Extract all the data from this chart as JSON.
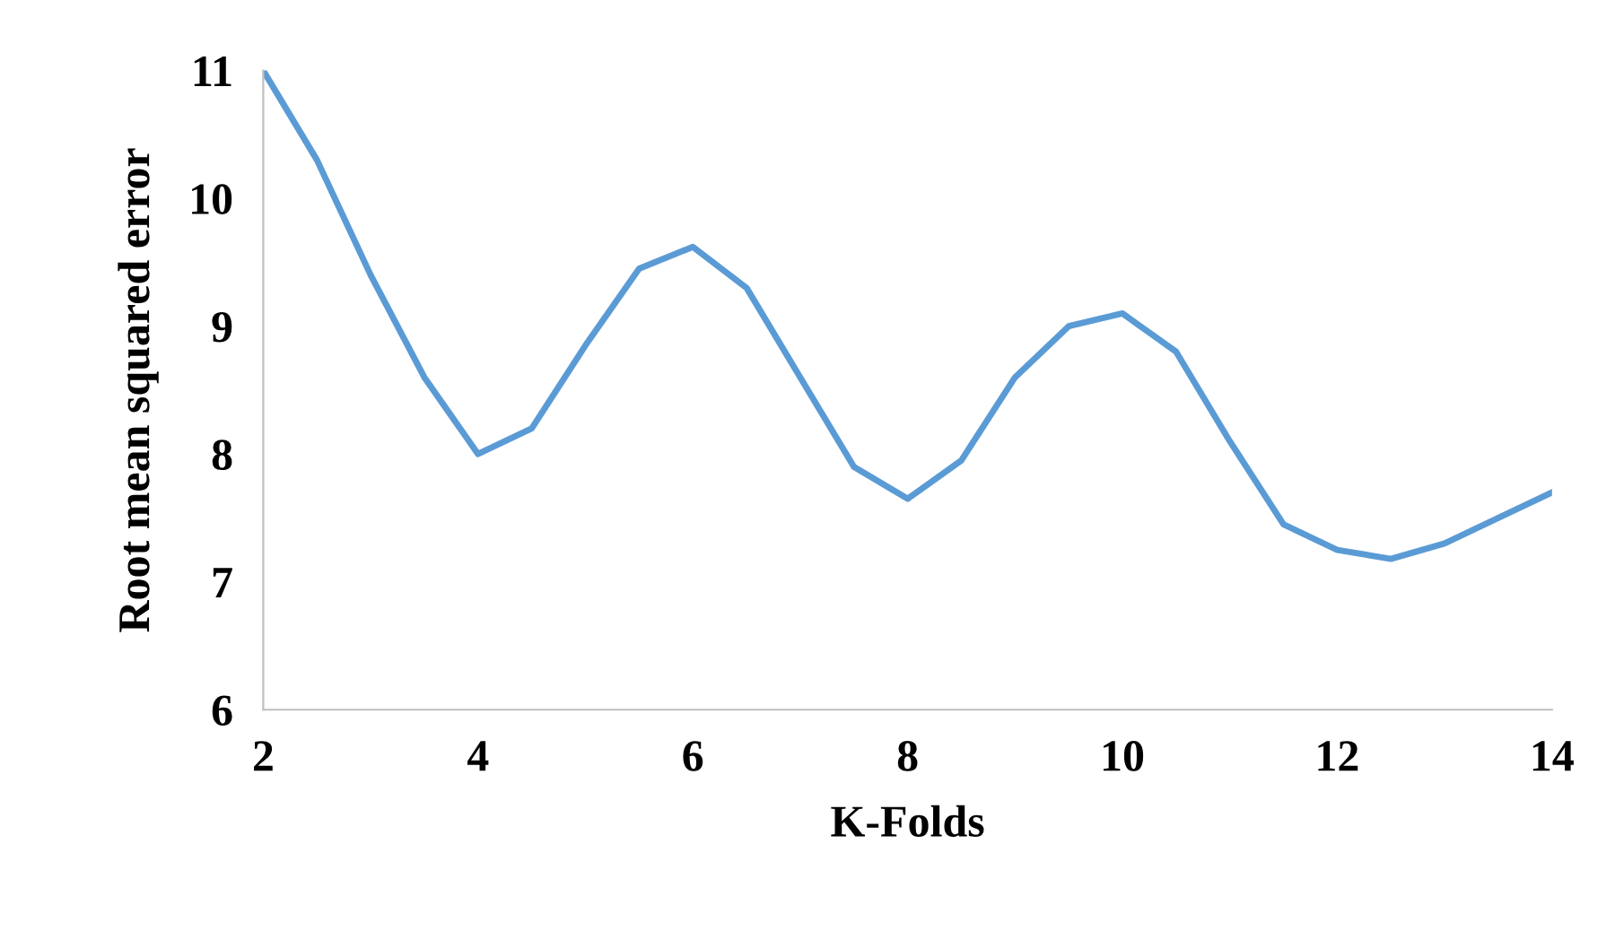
{
  "chart_data": {
    "type": "line",
    "xlabel": "K-Folds",
    "ylabel": "Root mean squared error",
    "x": [
      2,
      2.5,
      3,
      3.5,
      4,
      4.5,
      5,
      5.5,
      6,
      6.5,
      7,
      7.5,
      8,
      8.5,
      9,
      9.5,
      10,
      10.5,
      11,
      11.5,
      12,
      12.5,
      13,
      13.5,
      14
    ],
    "series": [
      {
        "color": "#5b9bd5",
        "values": [
          11,
          10.3,
          9.4,
          8.6,
          8.0,
          8.2,
          8.85,
          9.45,
          9.62,
          9.3,
          8.6,
          7.9,
          7.65,
          7.95,
          8.6,
          9.0,
          9.1,
          8.8,
          8.1,
          7.45,
          7.25,
          7.18,
          7.3,
          7.5,
          7.7
        ]
      }
    ],
    "xlim": [
      2,
      14
    ],
    "xticks": [
      2,
      4,
      6,
      8,
      10,
      12,
      14
    ],
    "ylim": [
      6,
      11
    ],
    "yticks": [
      6,
      7,
      8,
      9,
      10,
      11
    ],
    "grid": false,
    "legend": false,
    "marker": "none",
    "line_style": "solid"
  }
}
